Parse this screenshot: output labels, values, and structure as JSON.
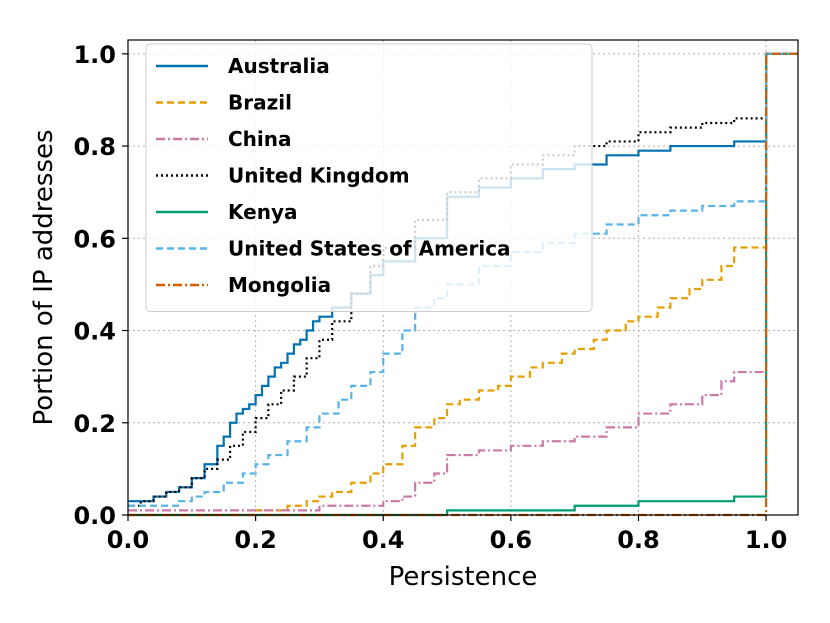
{
  "chart_data": {
    "type": "line",
    "subtype": "empirical-cdf-step",
    "title": "",
    "xlabel": "Persistence",
    "ylabel": "Portion of IP addresses",
    "xlim": [
      0.0,
      1.05
    ],
    "ylim": [
      0.0,
      1.03
    ],
    "xticks": [
      "0.0",
      "0.2",
      "0.4",
      "0.6",
      "0.8",
      "1.0"
    ],
    "yticks": [
      "0.0",
      "0.2",
      "0.4",
      "0.6",
      "0.8",
      "1.0"
    ],
    "grid": true,
    "legend_position": "top-left",
    "series": [
      {
        "name": "Australia",
        "color": "#0072b2",
        "style": "solid",
        "x": [
          0.0,
          0.02,
          0.04,
          0.06,
          0.08,
          0.1,
          0.12,
          0.14,
          0.15,
          0.16,
          0.17,
          0.18,
          0.19,
          0.2,
          0.21,
          0.22,
          0.23,
          0.24,
          0.25,
          0.26,
          0.27,
          0.28,
          0.29,
          0.3,
          0.32,
          0.35,
          0.38,
          0.4,
          0.45,
          0.5,
          0.55,
          0.6,
          0.65,
          0.7,
          0.75,
          0.8,
          0.85,
          0.9,
          0.95,
          1.0,
          1.05
        ],
        "y": [
          0.03,
          0.03,
          0.04,
          0.05,
          0.06,
          0.08,
          0.11,
          0.15,
          0.17,
          0.2,
          0.22,
          0.23,
          0.24,
          0.26,
          0.28,
          0.3,
          0.32,
          0.33,
          0.35,
          0.37,
          0.38,
          0.4,
          0.42,
          0.43,
          0.45,
          0.48,
          0.52,
          0.55,
          0.6,
          0.69,
          0.71,
          0.73,
          0.75,
          0.76,
          0.78,
          0.79,
          0.8,
          0.8,
          0.81,
          1.0,
          1.0
        ]
      },
      {
        "name": "Brazil",
        "color": "#e69f00",
        "style": "dashed",
        "x": [
          0.0,
          0.1,
          0.2,
          0.25,
          0.28,
          0.3,
          0.32,
          0.35,
          0.38,
          0.4,
          0.43,
          0.45,
          0.48,
          0.5,
          0.52,
          0.55,
          0.58,
          0.6,
          0.63,
          0.65,
          0.68,
          0.7,
          0.73,
          0.75,
          0.78,
          0.8,
          0.83,
          0.85,
          0.88,
          0.9,
          0.93,
          0.95,
          1.0,
          1.05
        ],
        "y": [
          0.0,
          0.0,
          0.01,
          0.02,
          0.03,
          0.04,
          0.05,
          0.07,
          0.09,
          0.11,
          0.15,
          0.19,
          0.21,
          0.24,
          0.25,
          0.27,
          0.28,
          0.3,
          0.32,
          0.33,
          0.35,
          0.36,
          0.38,
          0.4,
          0.42,
          0.43,
          0.45,
          0.47,
          0.49,
          0.51,
          0.54,
          0.58,
          1.0,
          1.0
        ]
      },
      {
        "name": "China",
        "color": "#cc79a7",
        "style": "dashdot",
        "x": [
          0.0,
          0.15,
          0.25,
          0.3,
          0.35,
          0.4,
          0.43,
          0.45,
          0.48,
          0.5,
          0.55,
          0.6,
          0.65,
          0.7,
          0.75,
          0.8,
          0.85,
          0.9,
          0.93,
          0.95,
          1.0,
          1.05
        ],
        "y": [
          0.01,
          0.01,
          0.01,
          0.02,
          0.02,
          0.03,
          0.04,
          0.07,
          0.09,
          0.13,
          0.14,
          0.15,
          0.16,
          0.17,
          0.19,
          0.22,
          0.24,
          0.26,
          0.29,
          0.31,
          1.0,
          1.0
        ]
      },
      {
        "name": "United Kingdom",
        "color": "#000000",
        "style": "dotted",
        "x": [
          0.0,
          0.02,
          0.04,
          0.06,
          0.08,
          0.1,
          0.12,
          0.14,
          0.16,
          0.18,
          0.2,
          0.22,
          0.24,
          0.26,
          0.28,
          0.3,
          0.32,
          0.35,
          0.38,
          0.4,
          0.45,
          0.5,
          0.55,
          0.6,
          0.65,
          0.7,
          0.75,
          0.8,
          0.85,
          0.9,
          0.95,
          1.0,
          1.05
        ],
        "y": [
          0.02,
          0.03,
          0.04,
          0.05,
          0.06,
          0.08,
          0.1,
          0.12,
          0.15,
          0.18,
          0.21,
          0.24,
          0.27,
          0.3,
          0.34,
          0.38,
          0.42,
          0.48,
          0.54,
          0.58,
          0.64,
          0.7,
          0.73,
          0.76,
          0.78,
          0.8,
          0.81,
          0.83,
          0.84,
          0.85,
          0.86,
          1.0,
          1.0
        ]
      },
      {
        "name": "Kenya",
        "color": "#009e73",
        "style": "solid",
        "x": [
          0.0,
          0.43,
          0.5,
          0.6,
          0.7,
          0.75,
          0.8,
          0.85,
          0.9,
          0.95,
          1.0,
          1.05
        ],
        "y": [
          0.0,
          0.0,
          0.01,
          0.01,
          0.02,
          0.02,
          0.03,
          0.03,
          0.03,
          0.04,
          1.0,
          1.0
        ]
      },
      {
        "name": "United States of America",
        "color": "#56b4e9",
        "style": "dashed",
        "x": [
          0.0,
          0.05,
          0.08,
          0.1,
          0.12,
          0.15,
          0.18,
          0.2,
          0.22,
          0.25,
          0.28,
          0.3,
          0.33,
          0.35,
          0.38,
          0.4,
          0.43,
          0.45,
          0.48,
          0.5,
          0.55,
          0.6,
          0.65,
          0.7,
          0.75,
          0.8,
          0.85,
          0.9,
          0.95,
          1.0,
          1.05
        ],
        "y": [
          0.02,
          0.02,
          0.03,
          0.04,
          0.05,
          0.07,
          0.09,
          0.11,
          0.13,
          0.16,
          0.19,
          0.22,
          0.25,
          0.28,
          0.31,
          0.35,
          0.4,
          0.45,
          0.47,
          0.5,
          0.54,
          0.57,
          0.59,
          0.61,
          0.63,
          0.65,
          0.66,
          0.67,
          0.68,
          1.0,
          1.0
        ]
      },
      {
        "name": "Mongolia",
        "color": "#d55e00",
        "style": "dashdot",
        "x": [
          0.0,
          1.0,
          1.0,
          1.05
        ],
        "y": [
          0.0,
          0.0,
          1.0,
          1.0
        ]
      }
    ]
  }
}
